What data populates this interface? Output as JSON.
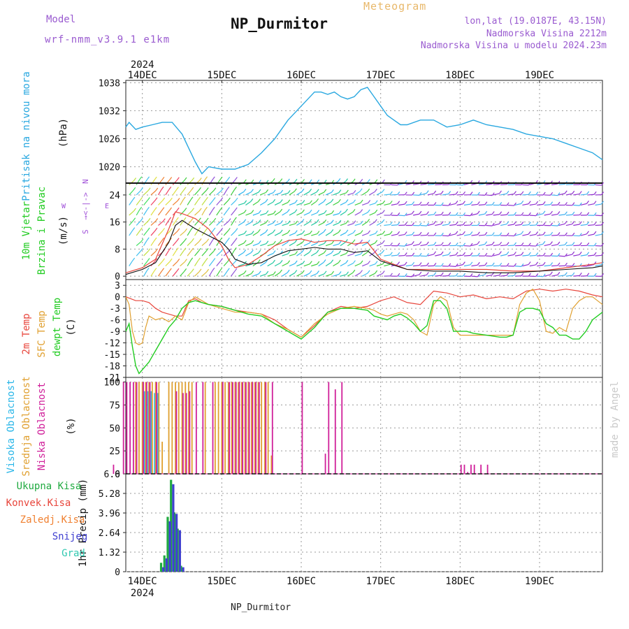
{
  "header": {
    "meteogram_label": "Meteogram",
    "station_title": "NP_Durmitor",
    "model_label": "Model",
    "model_value": "wrf-nmm_v3.9.1 e1km",
    "info_lines": [
      "lon,lat (19.0187E, 43.15N)",
      "Nadmorska Visina 2212m",
      "Nadmorska Visina u modelu 2024.23m"
    ],
    "bottom_label": "NP_Durmitor",
    "watermark": "made by Angel"
  },
  "colors": {
    "pressure": "#2aa8e0",
    "t2m": "#e8463c",
    "sfc": "#e0a030",
    "dew": "#22cc22",
    "high_cloud": "#29b6e8",
    "mid_cloud": "#e0a030",
    "low_cloud": "#d0209a",
    "total_rain": "#20aa40",
    "conv_rain": "#e8463c",
    "frozen_rain": "#f08030",
    "snow": "#4040d0",
    "hail": "#30c8b0",
    "wind_label": "#22cc22",
    "windrose": "#a050d8",
    "gust": "#e8463c",
    "wind_line": "#111111"
  },
  "chart_data": {
    "type": "line",
    "x_axis": {
      "start_label": "2024",
      "end_label": "2024",
      "day_labels": [
        "14DEC",
        "15DEC",
        "16DEC",
        "17DEC",
        "18DEC",
        "19DEC"
      ],
      "x_range_hours": [
        -5,
        139
      ],
      "day_ticks_hours": [
        0,
        24,
        48,
        72,
        96,
        120
      ]
    },
    "panels": [
      {
        "id": "pressure",
        "type": "line",
        "ylabel_lines": [
          "Pritisak na nivou mora",
          "(hPa)"
        ],
        "ylim": [
          1016.5,
          1038.5
        ],
        "yticks": [
          1020,
          1026,
          1032,
          1038
        ],
        "series": [
          {
            "name": "Pritisak na nivou mora",
            "x": [
              -5,
              -4,
              -2,
              0,
              3,
              6,
              9,
              12,
              14,
              16,
              18,
              20,
              24,
              28,
              32,
              36,
              40,
              44,
              48,
              52,
              54,
              56,
              58,
              60,
              62,
              64,
              66,
              68,
              70,
              72,
              74,
              76,
              78,
              80,
              84,
              88,
              92,
              96,
              100,
              104,
              108,
              112,
              116,
              120,
              124,
              128,
              132,
              136,
              139
            ],
            "values": [
              1028.5,
              1029.5,
              1028,
              1028.5,
              1029,
              1029.5,
              1029.5,
              1027,
              1024,
              1021,
              1018.5,
              1020,
              1019.5,
              1019.5,
              1020.5,
              1023,
              1026,
              1030,
              1033,
              1036,
              1036,
              1035.5,
              1036,
              1035,
              1034.5,
              1035,
              1036.5,
              1037,
              1035,
              1033,
              1031,
              1030,
              1029,
              1029,
              1030,
              1030,
              1028.5,
              1029,
              1030,
              1029,
              1028.5,
              1028,
              1027,
              1026.5,
              1026,
              1025,
              1024,
              1023,
              1021.5
            ]
          }
        ]
      },
      {
        "id": "wind",
        "type": "line",
        "ylabel_lines": [
          "10m Vjetar",
          "Brzina i Pravac",
          "(m/s)"
        ],
        "windrose_labels": [
          "N",
          "E",
          "S",
          "W"
        ],
        "windrose_arrow": "→<-|->",
        "ylim": [
          -1,
          27.5
        ],
        "yticks": [
          0,
          8,
          16,
          24
        ],
        "barbs_rows_ms": [
          0,
          3,
          6,
          9,
          12,
          15,
          18,
          21,
          24,
          27
        ],
        "series": [
          {
            "name": "wind_speed",
            "x": [
              -5,
              0,
              4,
              8,
              10,
              12,
              16,
              20,
              24,
              26,
              28,
              32,
              36,
              40,
              44,
              48,
              52,
              56,
              60,
              64,
              68,
              72,
              80,
              88,
              96,
              104,
              112,
              120,
              128,
              136,
              139
            ],
            "values": [
              0.5,
              2,
              4,
              10,
              15,
              16.5,
              14,
              12,
              10,
              8,
              5,
              3.5,
              4,
              6,
              7.5,
              8,
              8.5,
              8,
              8,
              7,
              7.5,
              4.5,
              2,
              1.5,
              1.5,
              1,
              1,
              1.5,
              2,
              2.5,
              3
            ]
          },
          {
            "name": "gust",
            "x": [
              -5,
              0,
              4,
              8,
              10,
              12,
              16,
              20,
              24,
              26,
              28,
              32,
              36,
              40,
              44,
              48,
              52,
              56,
              60,
              64,
              68,
              72,
              80,
              88,
              96,
              104,
              112,
              120,
              128,
              136,
              139
            ],
            "values": [
              1,
              2.5,
              5,
              14,
              19,
              18.5,
              17,
              14,
              9,
              5,
              2.5,
              3.5,
              6,
              9,
              10.5,
              11,
              10,
              10.5,
              10.5,
              9.5,
              10,
              5,
              2,
              2,
              2,
              2,
              1.5,
              1.5,
              2.5,
              3.5,
              4
            ]
          }
        ]
      },
      {
        "id": "temperature",
        "type": "line",
        "ylabel_lines": [
          "2m Temp",
          "SFC Temp",
          "dewpt Temp",
          "(C)"
        ],
        "ylim": [
          -21,
          4.5
        ],
        "yticks": [
          3,
          0,
          -3,
          -6,
          -9,
          -12,
          -15,
          -18,
          -21
        ],
        "series": [
          {
            "name": "2m Temp",
            "x": [
              -5,
              -2,
              0,
              2,
              4,
              6,
              8,
              10,
              12,
              14,
              16,
              18,
              20,
              24,
              28,
              32,
              36,
              40,
              44,
              48,
              52,
              56,
              60,
              64,
              68,
              72,
              76,
              80,
              84,
              88,
              92,
              96,
              100,
              104,
              108,
              112,
              116,
              120,
              124,
              128,
              132,
              136,
              139
            ],
            "values": [
              0,
              -1,
              -1,
              -1.5,
              -3,
              -4,
              -4.5,
              -5,
              -5,
              -1,
              -0.5,
              -1.5,
              -2,
              -2.5,
              -3.5,
              -4,
              -4.5,
              -6,
              -8.5,
              -10.5,
              -7.5,
              -4,
              -2.5,
              -3,
              -2.5,
              -1,
              0,
              -1.5,
              -2,
              1.5,
              1,
              0,
              0.5,
              -0.5,
              0,
              -0.5,
              1.5,
              2,
              1.5,
              2,
              1.5,
              0.5,
              0
            ]
          },
          {
            "name": "SFC Temp",
            "x": [
              -5,
              -4,
              -3,
              -2,
              -1,
              0,
              1,
              2,
              3,
              4,
              6,
              8,
              10,
              12,
              14,
              16,
              18,
              20,
              24,
              28,
              32,
              36,
              40,
              44,
              48,
              52,
              56,
              60,
              64,
              68,
              70,
              72,
              74,
              76,
              78,
              80,
              82,
              84,
              86,
              88,
              90,
              92,
              94,
              96,
              98,
              100,
              102,
              104,
              106,
              108,
              110,
              112,
              114,
              116,
              118,
              120,
              122,
              124,
              126,
              128,
              130,
              132,
              134,
              136,
              139
            ],
            "values": [
              0,
              -2,
              -9,
              -12,
              -12.5,
              -12,
              -8,
              -5,
              -5.5,
              -6,
              -5.5,
              -6.5,
              -5,
              -6,
              -1.5,
              0,
              -1,
              -2,
              -3,
              -4,
              -4,
              -4.5,
              -7,
              -8.5,
              -10.5,
              -7,
              -4.5,
              -3,
              -2.5,
              -3,
              -3.5,
              -4.5,
              -5,
              -4.5,
              -4,
              -4.5,
              -6,
              -9,
              -10,
              -2,
              0,
              -1,
              -8,
              -10,
              -10,
              -10,
              -10,
              -10,
              -10,
              -10,
              -10,
              -10,
              -2,
              1,
              2,
              -1,
              -9,
              -9.5,
              -8,
              -9,
              -3,
              -1,
              0,
              0,
              -2
            ]
          },
          {
            "name": "dewpt Temp",
            "x": [
              -5,
              -4,
              -3,
              -2,
              -1,
              0,
              2,
              4,
              6,
              8,
              10,
              12,
              14,
              16,
              18,
              20,
              24,
              28,
              32,
              36,
              40,
              44,
              48,
              52,
              56,
              60,
              64,
              68,
              70,
              72,
              74,
              76,
              78,
              80,
              82,
              84,
              86,
              88,
              90,
              92,
              94,
              96,
              98,
              100,
              104,
              108,
              110,
              112,
              114,
              116,
              118,
              120,
              122,
              124,
              126,
              128,
              130,
              132,
              134,
              136,
              139
            ],
            "values": [
              -9,
              -7,
              -13,
              -18,
              -20,
              -19,
              -17,
              -14,
              -11,
              -8,
              -6,
              -3,
              -1.5,
              -1,
              -1.5,
              -2,
              -2.5,
              -3.5,
              -4.5,
              -5,
              -7,
              -9,
              -11,
              -8,
              -4,
              -3,
              -3,
              -3.5,
              -5,
              -5.5,
              -6,
              -5,
              -4.5,
              -5.5,
              -7,
              -9,
              -7.5,
              -1,
              -1,
              -3,
              -9,
              -9,
              -9,
              -9.5,
              -10,
              -10.5,
              -10.5,
              -10,
              -4,
              -3,
              -3,
              -3.5,
              -7,
              -8,
              -10,
              -10,
              -11,
              -11,
              -9,
              -6,
              -4
            ]
          }
        ]
      },
      {
        "id": "clouds",
        "type": "bar",
        "ylabel_lines": [
          "Visoka Oblacnost",
          "Srednja Oblacnost",
          "Niska Oblacnost",
          "(%)"
        ],
        "ylim": [
          0,
          105
        ],
        "yticks": [
          0,
          25,
          50,
          75,
          100
        ],
        "series": [
          {
            "name": "Visoka Oblacnost",
            "x": [
              1,
              2,
              3,
              4,
              5,
              7
            ],
            "values": [
              90,
              90,
              90,
              88,
              88,
              0
            ]
          },
          {
            "name": "Srednja Oblacnost",
            "x": [
              -2,
              -1,
              0,
              1,
              2,
              3,
              4,
              5,
              6,
              8,
              9,
              10,
              11,
              12,
              13,
              14,
              15,
              19,
              22,
              23,
              24,
              25,
              26,
              27,
              28,
              29,
              30,
              31,
              32,
              33,
              34,
              35,
              36,
              37,
              38,
              39
            ],
            "values": [
              100,
              100,
              100,
              100,
              100,
              100,
              100,
              100,
              35,
              100,
              100,
              100,
              100,
              100,
              100,
              100,
              100,
              100,
              100,
              100,
              100,
              100,
              100,
              100,
              100,
              100,
              100,
              100,
              100,
              100,
              100,
              100,
              100,
              100,
              100,
              20
            ]
          },
          {
            "name": "Niska Oblacnost",
            "x": [
              -9,
              -6,
              -5,
              -4,
              -3,
              -2,
              0,
              1,
              2,
              4,
              10,
              12,
              13,
              14,
              16,
              18,
              21,
              24,
              26,
              27,
              28,
              29,
              30,
              31,
              32,
              33,
              34,
              35,
              37,
              39,
              48,
              55,
              56,
              58,
              60,
              96,
              97,
              98,
              99,
              100,
              102,
              104
            ],
            "values": [
              10,
              100,
              100,
              100,
              100,
              100,
              100,
              100,
              100,
              100,
              90,
              88,
              88,
              90,
              100,
              100,
              100,
              100,
              100,
              100,
              100,
              100,
              100,
              100,
              100,
              100,
              100,
              100,
              100,
              100,
              100,
              22,
              100,
              92,
              100,
              10,
              10,
              2,
              10,
              10,
              10,
              10
            ]
          }
        ]
      },
      {
        "id": "precip",
        "type": "bar",
        "ylabel_lines": [
          "1hr Precip (mm)"
        ],
        "legend": [
          "Ukupna Kisa",
          "Konvek.Kisa",
          "Zaledj.Kisa",
          "Snijeg",
          "Grad"
        ],
        "ylim": [
          0,
          6.6
        ],
        "yticks": [
          0,
          1.32,
          2.64,
          3.96,
          5.28,
          6.6
        ],
        "series": [
          {
            "name": "Ukupna Kisa",
            "x": [
              6,
              7,
              8,
              9,
              10,
              11,
              12
            ],
            "values": [
              0.6,
              1.1,
              3.7,
              6.2,
              4.0,
              2.9,
              0.4
            ]
          },
          {
            "name": "Snijeg",
            "x": [
              6,
              7,
              8,
              9,
              10,
              11,
              12
            ],
            "values": [
              0.3,
              0.9,
              3.4,
              5.9,
              3.9,
              2.8,
              0.3
            ]
          }
        ]
      }
    ]
  }
}
